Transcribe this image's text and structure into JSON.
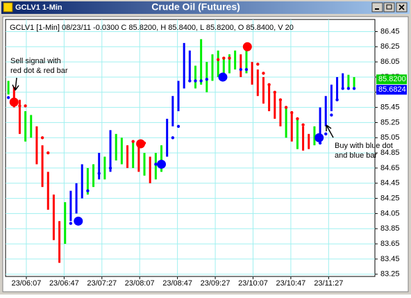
{
  "chart_data": {
    "type": "bar-range",
    "window_title": "GCLV1 1-Min",
    "title": "Crude Oil (Futures)",
    "info": "GCLV1 [1-Min] 08/23/11 -0.0300 C 85.8200, H 85.8400, L 85.8200, O 85.8400, V 20",
    "xlim": [
      345,
      736
    ],
    "xticks": [
      {
        "value": 367,
        "label": "23/06:07"
      },
      {
        "value": 407,
        "label": "23/06:47"
      },
      {
        "value": 447,
        "label": "23/07:27"
      },
      {
        "value": 487,
        "label": "23/08:07"
      },
      {
        "value": 527,
        "label": "23/08:47"
      },
      {
        "value": 567,
        "label": "23/09:27"
      },
      {
        "value": 607,
        "label": "23/10:07"
      },
      {
        "value": 647,
        "label": "23/10:47"
      },
      {
        "value": 687,
        "label": "23/11:27"
      }
    ],
    "ylim": [
      83.22,
      86.61
    ],
    "yticks": [
      86.45,
      86.25,
      86.05,
      85.85,
      85.65,
      85.45,
      85.25,
      85.05,
      84.85,
      84.65,
      84.45,
      84.25,
      84.05,
      83.85,
      83.65,
      83.45,
      83.25
    ],
    "grid": true,
    "grid_color": "#9ff0f0",
    "bars": {
      "x": [
        348,
        354,
        360,
        366,
        372,
        378,
        384,
        390,
        396,
        402,
        408,
        414,
        420,
        426,
        432,
        438,
        444,
        450,
        456,
        462,
        468,
        474,
        480,
        486,
        492,
        498,
        504,
        510,
        516,
        522,
        528,
        534,
        540,
        546,
        552,
        558,
        564,
        570,
        576,
        582,
        588,
        594,
        600,
        606,
        612,
        618,
        624,
        630,
        636,
        642,
        648,
        654,
        660,
        666,
        672,
        678,
        684,
        690,
        696,
        702,
        708,
        714
      ],
      "high": [
        85.8,
        85.72,
        85.55,
        85.4,
        85.35,
        85.2,
        84.95,
        84.6,
        84.3,
        83.95,
        84.2,
        84.35,
        84.45,
        84.7,
        84.65,
        84.7,
        84.85,
        84.8,
        85.15,
        85.1,
        85.05,
        84.95,
        85.0,
        84.95,
        84.85,
        84.8,
        84.85,
        84.95,
        85.3,
        85.6,
        85.8,
        86.3,
        86.2,
        86.0,
        86.35,
        86.05,
        86.15,
        86.2,
        86.1,
        86.15,
        86.2,
        86.15,
        86.25,
        86.05,
        85.95,
        85.85,
        85.75,
        85.65,
        85.55,
        85.45,
        85.4,
        85.3,
        85.2,
        85.1,
        85.2,
        85.45,
        85.6,
        85.75,
        85.85,
        85.9,
        85.88,
        85.85
      ],
      "low": [
        85.62,
        85.45,
        85.1,
        85.0,
        85.05,
        84.7,
        84.4,
        84.1,
        83.7,
        83.4,
        83.65,
        83.95,
        84.05,
        84.25,
        84.3,
        84.4,
        84.5,
        84.5,
        84.6,
        84.75,
        84.7,
        84.65,
        84.65,
        84.6,
        84.55,
        84.45,
        84.5,
        84.6,
        84.8,
        85.2,
        85.4,
        85.7,
        85.8,
        85.7,
        85.75,
        85.65,
        85.8,
        85.85,
        85.85,
        85.9,
        85.95,
        85.85,
        85.9,
        85.75,
        85.6,
        85.5,
        85.4,
        85.3,
        85.2,
        85.05,
        85.0,
        84.9,
        84.88,
        84.9,
        84.95,
        85.0,
        85.2,
        85.4,
        85.55,
        85.7,
        85.7,
        85.72
      ],
      "colors": [
        "#00ee00",
        "#ff0000",
        "#ff0000",
        "#00ee00",
        "#00ee00",
        "#ff0000",
        "#ff0000",
        "#ff0000",
        "#ff0000",
        "#ff0000",
        "#00ee00",
        "#0000ff",
        "#0000ff",
        "#0000ff",
        "#00ee00",
        "#00ee00",
        "#0000ff",
        "#00ee00",
        "#0000ff",
        "#00ee00",
        "#00ee00",
        "#ff0000",
        "#00ee00",
        "#ff0000",
        "#00ee00",
        "#ff0000",
        "#00ee00",
        "#00ee00",
        "#0000ff",
        "#0000ff",
        "#0000ff",
        "#0000ff",
        "#0000ff",
        "#00ee00",
        "#00ee00",
        "#00ee00",
        "#00ee00",
        "#00ee00",
        "#00ee00",
        "#00ee00",
        "#00ee00",
        "#ff0000",
        "#00ee00",
        "#ff0000",
        "#ff0000",
        "#ff0000",
        "#ff0000",
        "#ff0000",
        "#ff0000",
        "#00ee00",
        "#ff0000",
        "#00ee00",
        "#ff0000",
        "#ff0000",
        "#00ee00",
        "#0000ff",
        "#0000ff",
        "#0000ff",
        "#0000ff",
        "#0000ff",
        "#00ee00",
        "#00ee00"
      ]
    },
    "stops": {
      "x": [
        348,
        360,
        366,
        384,
        390,
        414,
        420,
        432,
        444,
        456,
        480,
        486,
        492,
        504,
        510,
        522,
        528,
        540,
        546,
        552,
        558,
        570,
        576,
        582,
        594,
        600,
        612,
        618,
        624,
        630,
        636,
        642,
        648,
        654,
        660,
        678,
        684,
        690,
        696,
        702,
        708,
        714
      ],
      "values": [
        85.58,
        85.47,
        85.47,
        85.05,
        84.85,
        83.92,
        83.92,
        84.35,
        84.58,
        84.65,
        85.0,
        85.0,
        84.98,
        84.7,
        84.72,
        85.05,
        85.2,
        85.8,
        85.8,
        85.8,
        85.82,
        86.08,
        86.1,
        86.1,
        85.95,
        85.95,
        86.02,
        85.9,
        85.75,
        85.65,
        85.55,
        85.45,
        85.38,
        85.3,
        85.22,
        84.98,
        85.1,
        85.35,
        85.55,
        85.7,
        85.7,
        85.7
      ],
      "colors": [
        "#0000ff",
        "#ff0000",
        "#ff0000",
        "#ff0000",
        "#ff0000",
        "#0000ff",
        "#0000ff",
        "#0000ff",
        "#0000ff",
        "#0000ff",
        "#ff0000",
        "#ff0000",
        "#ff0000",
        "#0000ff",
        "#0000ff",
        "#0000ff",
        "#0000ff",
        "#0000ff",
        "#0000ff",
        "#0000ff",
        "#0000ff",
        "#ff0000",
        "#ff0000",
        "#ff0000",
        "#0000ff",
        "#0000ff",
        "#ff0000",
        "#ff0000",
        "#ff0000",
        "#ff0000",
        "#ff0000",
        "#ff0000",
        "#ff0000",
        "#ff0000",
        "#ff0000",
        "#0000ff",
        "#0000ff",
        "#0000ff",
        "#0000ff",
        "#0000ff",
        "#0000ff",
        "#0000ff"
      ]
    },
    "signals": {
      "x": [
        354,
        422,
        488,
        510,
        575,
        601,
        677
      ],
      "values": [
        85.52,
        83.95,
        84.97,
        84.7,
        85.85,
        86.25,
        85.05
      ],
      "colors": [
        "#ff0000",
        "#0000ff",
        "#ff0000",
        "#0000ff",
        "#0000ff",
        "#ff0000",
        "#0000ff"
      ]
    },
    "price_labels": [
      {
        "value": 85.82,
        "label": "85.8200",
        "color": "#00cc00"
      },
      {
        "value": 85.6824,
        "label": "85.6824",
        "color": "#0000ff"
      }
    ],
    "annotations": [
      {
        "lines": [
          "Sell signal with",
          "red dot & red bar"
        ]
      },
      {
        "lines": [
          "Buy with blue dot",
          "and blue bar"
        ]
      }
    ]
  }
}
